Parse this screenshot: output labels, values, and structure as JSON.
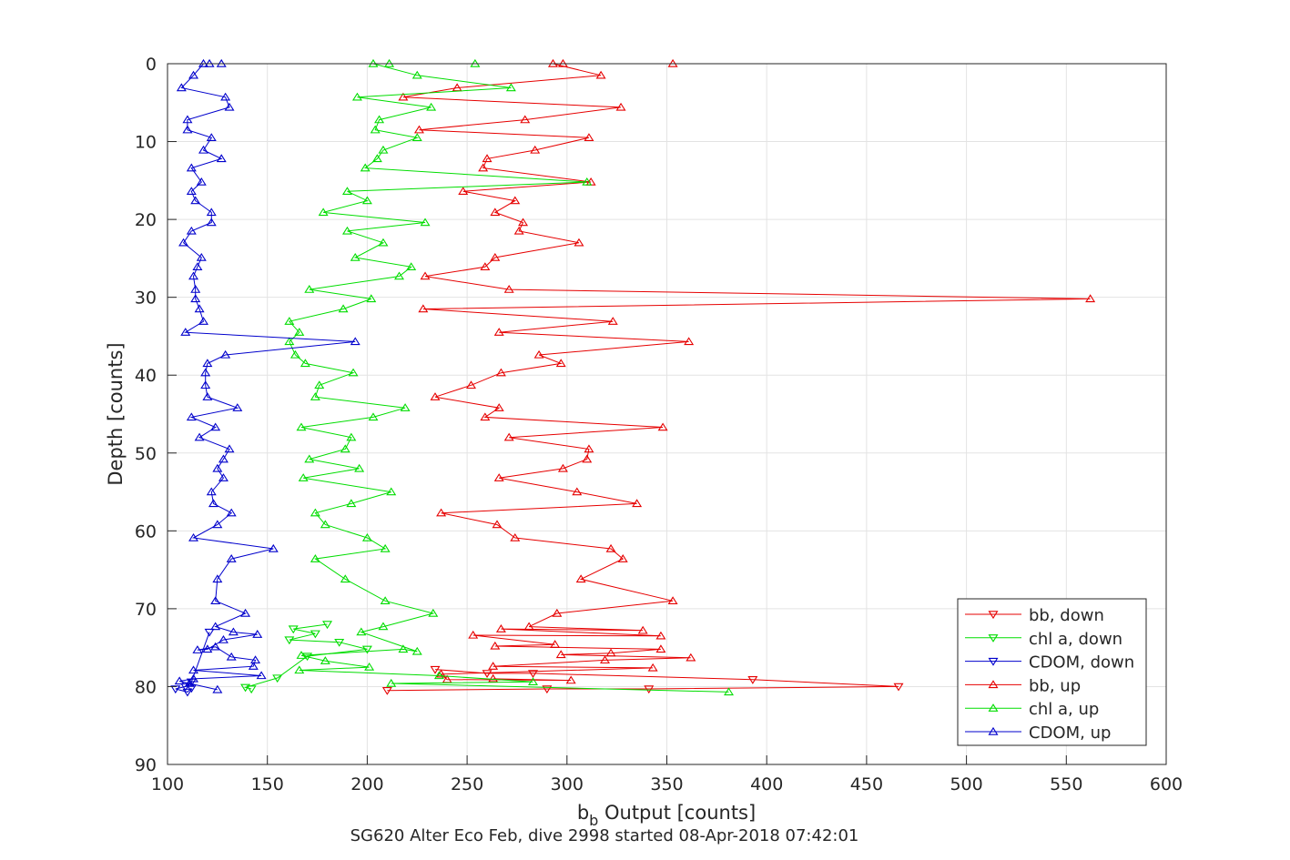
{
  "chart_data": {
    "type": "line",
    "xlabel_main": "b",
    "xlabel_sub": "b",
    "xlabel_rest": " Output [counts]",
    "ylabel": "Depth [counts]",
    "title": "SG620 Alter Eco Feb, dive 2998 started 08-Apr-2018 07:42:01",
    "xlim": [
      100,
      600
    ],
    "ylim": [
      0,
      90
    ],
    "y_reversed": true,
    "grid": true,
    "legend_position": "bottom-right",
    "xticks": [
      100,
      150,
      200,
      250,
      300,
      350,
      400,
      450,
      500,
      550,
      600
    ],
    "yticks": [
      0,
      10,
      20,
      30,
      40,
      50,
      60,
      70,
      80,
      90
    ],
    "series": [
      {
        "name": "bb, down",
        "color": "#e60000",
        "marker": "triangle-down",
        "points": [
          [
            234,
            77.8
          ],
          [
            260,
            78.3
          ],
          [
            283,
            78.3
          ],
          [
            393,
            79.1
          ],
          [
            466,
            80.0
          ],
          [
            341,
            80.3
          ],
          [
            290,
            80.3
          ],
          [
            210,
            80.5
          ]
        ]
      },
      {
        "name": "chl a, down",
        "color": "#00dd00",
        "marker": "triangle-down",
        "points": [
          [
            180,
            72.0
          ],
          [
            163,
            72.6
          ],
          [
            174,
            73.2
          ],
          [
            161,
            74.0
          ],
          [
            186,
            74.3
          ],
          [
            200,
            75.2
          ],
          [
            170,
            76.1
          ],
          [
            155,
            78.9
          ],
          [
            139,
            80.1
          ],
          [
            142,
            80.3
          ]
        ]
      },
      {
        "name": "CDOM, down",
        "color": "#0000cc",
        "marker": "triangle-down",
        "points": [
          [
            121,
            73.0
          ],
          [
            112,
            79.4
          ],
          [
            109,
            80.0
          ],
          [
            104,
            80.3
          ],
          [
            110,
            80.7
          ],
          [
            112,
            80.2
          ]
        ]
      },
      {
        "name": "bb, up",
        "color": "#e60000",
        "marker": "triangle-up",
        "points": [
          [
            353,
            0
          ],
          [
            298,
            0
          ],
          [
            293,
            0
          ],
          [
            317,
            1.5
          ],
          [
            245,
            3.1
          ],
          [
            218,
            4.3
          ],
          [
            327,
            5.6
          ],
          [
            279,
            7.2
          ],
          [
            226,
            8.5
          ],
          [
            311,
            9.5
          ],
          [
            284,
            11.1
          ],
          [
            260,
            12.2
          ],
          [
            258,
            13.4
          ],
          [
            312,
            15.2
          ],
          [
            248,
            16.4
          ],
          [
            274,
            17.6
          ],
          [
            264,
            19.1
          ],
          [
            278,
            20.4
          ],
          [
            276,
            21.5
          ],
          [
            306,
            23.0
          ],
          [
            264,
            24.9
          ],
          [
            259,
            26.1
          ],
          [
            229,
            27.3
          ],
          [
            271,
            29.0
          ],
          [
            562,
            30.2
          ],
          [
            228,
            31.5
          ],
          [
            323,
            33.1
          ],
          [
            266,
            34.5
          ],
          [
            361,
            35.7
          ],
          [
            286,
            37.4
          ],
          [
            297,
            38.5
          ],
          [
            267,
            39.7
          ],
          [
            252,
            41.3
          ],
          [
            234,
            42.8
          ],
          [
            266,
            44.2
          ],
          [
            259,
            45.4
          ],
          [
            348,
            46.7
          ],
          [
            271,
            48.0
          ],
          [
            311,
            49.5
          ],
          [
            310,
            50.8
          ],
          [
            298,
            52.0
          ],
          [
            266,
            53.2
          ],
          [
            305,
            55.0
          ],
          [
            335,
            56.5
          ],
          [
            237,
            57.7
          ],
          [
            265,
            59.2
          ],
          [
            274,
            60.9
          ],
          [
            322,
            62.3
          ],
          [
            328,
            63.6
          ],
          [
            307,
            66.2
          ],
          [
            353,
            69.0
          ],
          [
            295,
            70.6
          ],
          [
            281,
            72.3
          ],
          [
            338,
            72.8
          ],
          [
            267,
            72.6
          ],
          [
            347,
            73.5
          ],
          [
            253,
            73.4
          ],
          [
            294,
            74.6
          ],
          [
            264,
            74.8
          ],
          [
            347,
            75.2
          ],
          [
            322,
            75.7
          ],
          [
            297,
            75.9
          ],
          [
            362,
            76.3
          ],
          [
            319,
            76.6
          ],
          [
            263,
            77.4
          ],
          [
            343,
            77.6
          ],
          [
            237,
            78.4
          ],
          [
            240,
            79.1
          ],
          [
            302,
            79.2
          ],
          [
            263,
            79.0
          ]
        ]
      },
      {
        "name": "chl a, up",
        "color": "#00dd00",
        "marker": "triangle-up",
        "points": [
          [
            211,
            0
          ],
          [
            254,
            0
          ],
          [
            203,
            0
          ],
          [
            225,
            1.5
          ],
          [
            272,
            3.1
          ],
          [
            195,
            4.3
          ],
          [
            232,
            5.6
          ],
          [
            206,
            7.2
          ],
          [
            204,
            8.5
          ],
          [
            225,
            9.5
          ],
          [
            208,
            11.1
          ],
          [
            205,
            12.2
          ],
          [
            199,
            13.4
          ],
          [
            310,
            15.2
          ],
          [
            190,
            16.4
          ],
          [
            200,
            17.6
          ],
          [
            178,
            19.1
          ],
          [
            229,
            20.4
          ],
          [
            190,
            21.5
          ],
          [
            208,
            23.0
          ],
          [
            194,
            24.9
          ],
          [
            222,
            26.1
          ],
          [
            216,
            27.3
          ],
          [
            171,
            29.0
          ],
          [
            202,
            30.2
          ],
          [
            188,
            31.5
          ],
          [
            161,
            33.1
          ],
          [
            166,
            34.5
          ],
          [
            161,
            35.7
          ],
          [
            164,
            37.4
          ],
          [
            169,
            38.5
          ],
          [
            193,
            39.7
          ],
          [
            176,
            41.3
          ],
          [
            174,
            42.8
          ],
          [
            219,
            44.2
          ],
          [
            203,
            45.4
          ],
          [
            167,
            46.7
          ],
          [
            192,
            48.0
          ],
          [
            189,
            49.5
          ],
          [
            171,
            50.8
          ],
          [
            196,
            52.0
          ],
          [
            168,
            53.2
          ],
          [
            212,
            55.0
          ],
          [
            192,
            56.5
          ],
          [
            174,
            57.7
          ],
          [
            179,
            59.2
          ],
          [
            200,
            60.9
          ],
          [
            209,
            62.3
          ],
          [
            174,
            63.6
          ],
          [
            189,
            66.2
          ],
          [
            209,
            69.0
          ],
          [
            233,
            70.6
          ],
          [
            208,
            72.3
          ],
          [
            197,
            73.0
          ],
          [
            225,
            75.5
          ],
          [
            218,
            75.2
          ],
          [
            167,
            76.0
          ],
          [
            179,
            76.7
          ],
          [
            201,
            77.5
          ],
          [
            166,
            77.9
          ],
          [
            236,
            78.6
          ],
          [
            283,
            79.4
          ],
          [
            212,
            79.6
          ],
          [
            381,
            80.7
          ]
        ]
      },
      {
        "name": "CDOM, up",
        "color": "#0000cc",
        "marker": "triangle-up",
        "points": [
          [
            127,
            0
          ],
          [
            121,
            0
          ],
          [
            118,
            0
          ],
          [
            113,
            1.5
          ],
          [
            107,
            3.1
          ],
          [
            129,
            4.3
          ],
          [
            131,
            5.6
          ],
          [
            110,
            7.2
          ],
          [
            110,
            8.5
          ],
          [
            122,
            9.5
          ],
          [
            118,
            11.1
          ],
          [
            127,
            12.2
          ],
          [
            112,
            13.4
          ],
          [
            117,
            15.2
          ],
          [
            112,
            16.4
          ],
          [
            114,
            17.6
          ],
          [
            122,
            19.1
          ],
          [
            122,
            20.4
          ],
          [
            112,
            21.5
          ],
          [
            108,
            23.0
          ],
          [
            117,
            24.9
          ],
          [
            115,
            26.1
          ],
          [
            113,
            27.3
          ],
          [
            114,
            29.0
          ],
          [
            114,
            30.2
          ],
          [
            116,
            31.5
          ],
          [
            118,
            33.1
          ],
          [
            109,
            34.5
          ],
          [
            194,
            35.7
          ],
          [
            129,
            37.4
          ],
          [
            120,
            38.5
          ],
          [
            119,
            39.7
          ],
          [
            119,
            41.3
          ],
          [
            120,
            42.8
          ],
          [
            135,
            44.2
          ],
          [
            112,
            45.4
          ],
          [
            124,
            46.7
          ],
          [
            116,
            48.0
          ],
          [
            131,
            49.5
          ],
          [
            128,
            50.8
          ],
          [
            125,
            52.0
          ],
          [
            128,
            53.2
          ],
          [
            122,
            55.0
          ],
          [
            123,
            56.5
          ],
          [
            132,
            57.7
          ],
          [
            125,
            59.2
          ],
          [
            113,
            60.9
          ],
          [
            153,
            62.3
          ],
          [
            132,
            63.6
          ],
          [
            125,
            66.2
          ],
          [
            124,
            69.0
          ],
          [
            139,
            70.6
          ],
          [
            124,
            72.3
          ],
          [
            133,
            73.0
          ],
          [
            145,
            73.3
          ],
          [
            128,
            74.0
          ],
          [
            120,
            75.2
          ],
          [
            115,
            75.3
          ],
          [
            124,
            74.9
          ],
          [
            132,
            76.2
          ],
          [
            144,
            76.6
          ],
          [
            143,
            77.4
          ],
          [
            113,
            77.9
          ],
          [
            147,
            78.6
          ],
          [
            113,
            79.0
          ],
          [
            106,
            79.3
          ],
          [
            111,
            79.6
          ],
          [
            125,
            80.4
          ]
        ]
      }
    ]
  }
}
